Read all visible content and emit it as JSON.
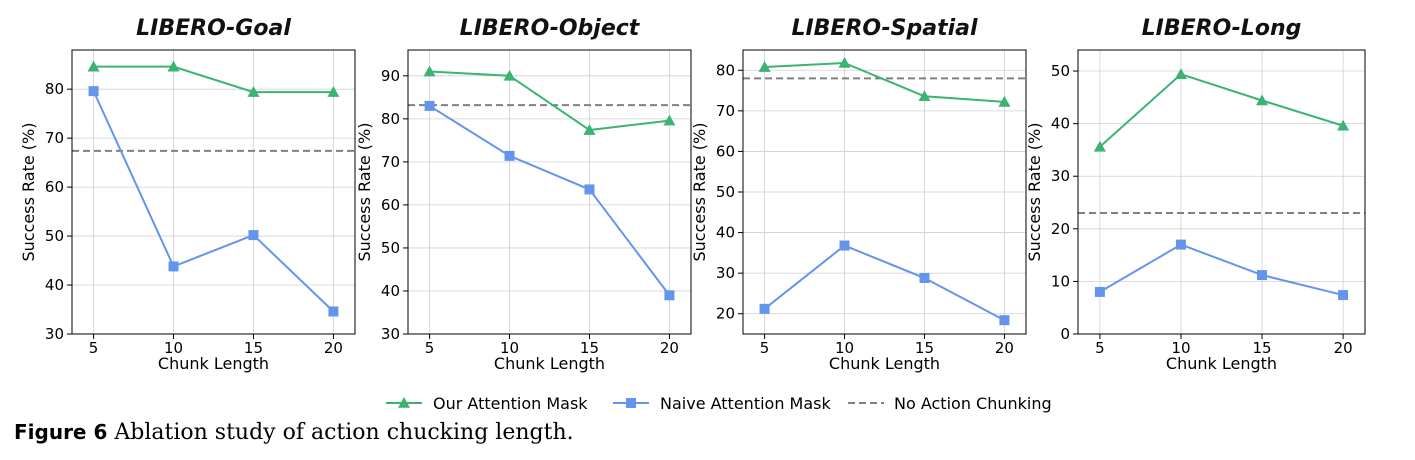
{
  "colors": {
    "ours": "#3cb371",
    "naive": "#6495ed",
    "baseline": "#808080",
    "grid": "#d0d0d0"
  },
  "legend": {
    "ours": "Our Attention Mask",
    "naive": "Naive Attention Mask",
    "baseline": "No Action Chunking"
  },
  "caption": {
    "figure_label": "Figure 6",
    "text": "Ablation study of action chucking length."
  },
  "chart_data": [
    {
      "type": "line",
      "title": "LIBERO-Goal",
      "xlabel": "Chunk Length",
      "ylabel": "Success Rate (%)",
      "x": [
        5,
        10,
        15,
        20
      ],
      "ylim": [
        30,
        88
      ],
      "yticks": [
        30,
        40,
        50,
        60,
        70,
        80
      ],
      "series": [
        {
          "name": "Our Attention Mask",
          "values": [
            84.6,
            84.6,
            79.4,
            79.4
          ]
        },
        {
          "name": "Naive Attention Mask",
          "values": [
            79.6,
            43.8,
            50.2,
            34.6
          ]
        }
      ],
      "baseline": {
        "name": "No Action Chunking",
        "value": 67.4
      }
    },
    {
      "type": "line",
      "title": "LIBERO-Object",
      "xlabel": "Chunk Length",
      "ylabel": "Success Rate (%)",
      "x": [
        5,
        10,
        15,
        20
      ],
      "ylim": [
        30,
        96
      ],
      "yticks": [
        30,
        40,
        50,
        60,
        70,
        80,
        90
      ],
      "series": [
        {
          "name": "Our Attention Mask",
          "values": [
            91.0,
            90.0,
            77.4,
            79.6
          ]
        },
        {
          "name": "Naive Attention Mask",
          "values": [
            83.0,
            71.4,
            63.6,
            39.0
          ]
        }
      ],
      "baseline": {
        "name": "No Action Chunking",
        "value": 83.2
      }
    },
    {
      "type": "line",
      "title": "LIBERO-Spatial",
      "xlabel": "Chunk Length",
      "ylabel": "Success Rate (%)",
      "x": [
        5,
        10,
        15,
        20
      ],
      "ylim": [
        15,
        85
      ],
      "yticks": [
        20,
        30,
        40,
        50,
        60,
        70,
        80
      ],
      "series": [
        {
          "name": "Our Attention Mask",
          "values": [
            80.8,
            81.8,
            73.6,
            72.2
          ]
        },
        {
          "name": "Naive Attention Mask",
          "values": [
            21.2,
            36.8,
            28.8,
            18.4
          ]
        }
      ],
      "baseline": {
        "name": "No Action Chunking",
        "value": 78.0
      }
    },
    {
      "type": "line",
      "title": "LIBERO-Long",
      "xlabel": "Chunk Length",
      "ylabel": "Success Rate (%)",
      "x": [
        5,
        10,
        15,
        20
      ],
      "ylim": [
        0,
        54
      ],
      "yticks": [
        0,
        10,
        20,
        30,
        40,
        50
      ],
      "series": [
        {
          "name": "Our Attention Mask",
          "values": [
            35.6,
            49.4,
            44.4,
            39.6
          ]
        },
        {
          "name": "Naive Attention Mask",
          "values": [
            8.0,
            17.0,
            11.2,
            7.4
          ]
        }
      ],
      "baseline": {
        "name": "No Action Chunking",
        "value": 23.0
      }
    }
  ]
}
